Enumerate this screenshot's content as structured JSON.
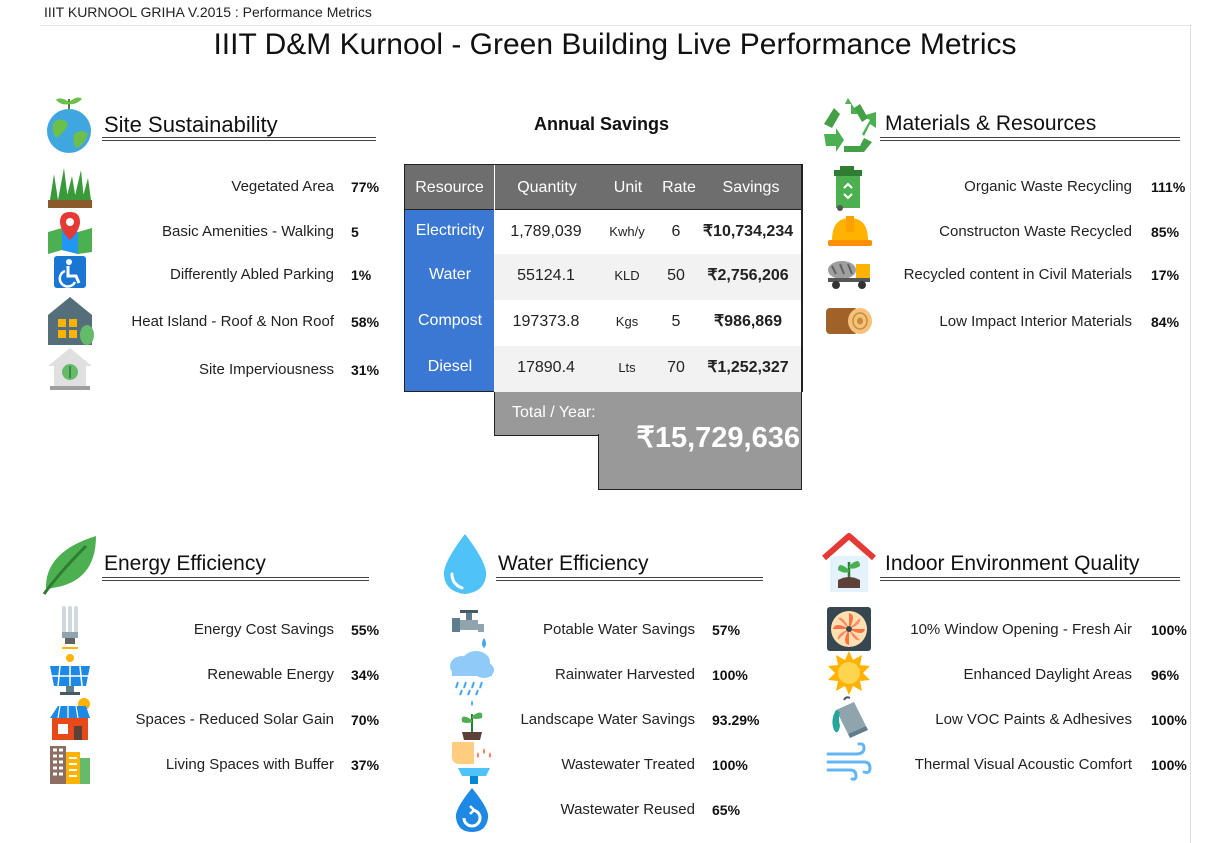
{
  "header": {
    "breadcrumb": "IIIT KURNOOL GRIHA V.2015 : Performance Metrics",
    "title": "IIIT D&M Kurnool - Green Building Live Performance Metrics"
  },
  "site": {
    "title": "Site Sustainability",
    "items": [
      {
        "label": "Vegetated Area",
        "value": "77%"
      },
      {
        "label": "Basic Amenities - Walking",
        "value": "5"
      },
      {
        "label": "Differently Abled Parking",
        "value": "1%"
      },
      {
        "label": "Heat Island - Roof & Non Roof",
        "value": "58%"
      },
      {
        "label": "Site Imperviousness",
        "value": "31%"
      }
    ]
  },
  "savings": {
    "title": "Annual Savings",
    "headers": [
      "Resource",
      "Quantity",
      "Unit",
      "Rate",
      "Savings"
    ],
    "rows": [
      {
        "resource": "Electricity",
        "quantity": "1,789,039",
        "unit": "Kwh/y",
        "rate": "6",
        "savings": "₹10,734,234"
      },
      {
        "resource": "Water",
        "quantity": "55124.1",
        "unit": "KLD",
        "rate": "50",
        "savings": "₹2,756,206"
      },
      {
        "resource": "Compost",
        "quantity": "197373.8",
        "unit": "Kgs",
        "rate": "5",
        "savings": "₹986,869"
      },
      {
        "resource": "Diesel",
        "quantity": "17890.4",
        "unit": "Lts",
        "rate": "70",
        "savings": "₹1,252,327"
      }
    ],
    "total_label": "Total / Year:",
    "total_value": "₹15,729,636"
  },
  "materials": {
    "title": "Materials & Resources",
    "items": [
      {
        "label": "Organic Waste Recycling",
        "value": "111%"
      },
      {
        "label": "Constructon Waste Recycled",
        "value": "85%"
      },
      {
        "label": "Recycled content in Civil Materials",
        "value": "17%"
      },
      {
        "label": "Low Impact Interior Materials",
        "value": "84%"
      }
    ]
  },
  "energy": {
    "title": "Energy Efficiency",
    "items": [
      {
        "label": "Energy Cost Savings",
        "value": "55%"
      },
      {
        "label": "Renewable Energy",
        "value": "34%"
      },
      {
        "label": "Spaces - Reduced Solar Gain",
        "value": "70%"
      },
      {
        "label": "Living Spaces with Buffer",
        "value": "37%"
      }
    ]
  },
  "water": {
    "title": "Water Efficiency",
    "items": [
      {
        "label": "Potable Water Savings",
        "value": "57%"
      },
      {
        "label": "Rainwater Harvested",
        "value": "100%"
      },
      {
        "label": "Landscape Water Savings",
        "value": "93.29%"
      },
      {
        "label": "Wastewater Treated",
        "value": "100%"
      },
      {
        "label": "Wastewater Reused",
        "value": "65%"
      }
    ]
  },
  "ieq": {
    "title": "Indoor Environment Quality",
    "items": [
      {
        "label": "10% Window Opening - Fresh Air",
        "value": "100%"
      },
      {
        "label": "Enhanced Daylight Areas",
        "value": "96%"
      },
      {
        "label": "Low VOC Paints & Adhesives",
        "value": "100%"
      },
      {
        "label": "Thermal Visual Acoustic Comfort",
        "value": "100%"
      }
    ]
  },
  "icons": {
    "site": [
      "globe-sprout-icon",
      "grass-icon",
      "map-pin-icon",
      "wheelchair-icon",
      "green-house-icon",
      "leaf-house-icon"
    ],
    "materials": [
      "recycle-icon",
      "compost-bin-icon",
      "hard-hat-icon",
      "cement-mixer-icon",
      "wood-log-icon"
    ],
    "energy": [
      "leaf-icon",
      "cfl-bulb-icon",
      "solar-panel-icon",
      "solar-roof-house-icon",
      "apartment-building-icon"
    ],
    "water": [
      "water-drop-icon",
      "faucet-icon",
      "rain-cloud-icon",
      "watering-sprout-icon",
      "hand-wash-icon",
      "drop-reuse-icon"
    ],
    "ieq": [
      "plant-house-icon",
      "exhaust-fan-icon",
      "sun-icon",
      "paint-bucket-icon",
      "wind-icon"
    ]
  },
  "colors": {
    "resource_blue": "#3a78d4",
    "table_header": "#6e6e6e",
    "total_grey": "#999999",
    "leaf_green": "#4caf50"
  }
}
